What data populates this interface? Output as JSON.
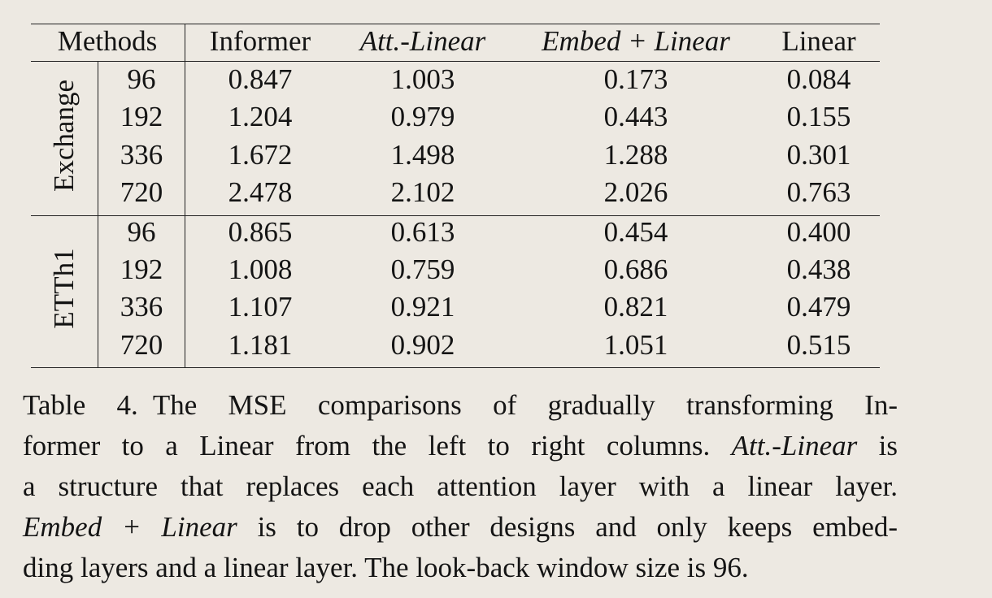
{
  "table": {
    "header": {
      "methods": "Methods",
      "informer": "Informer",
      "att_linear": "Att.-Linear",
      "embed_linear": "Embed + Linear",
      "linear": "Linear"
    },
    "groups": [
      {
        "name": "Exchange",
        "rows": [
          {
            "horizon": "96",
            "informer": "0.847",
            "att_linear": "1.003",
            "embed_linear": "0.173",
            "linear": "0.084"
          },
          {
            "horizon": "192",
            "informer": "1.204",
            "att_linear": "0.979",
            "embed_linear": "0.443",
            "linear": "0.155"
          },
          {
            "horizon": "336",
            "informer": "1.672",
            "att_linear": "1.498",
            "embed_linear": "1.288",
            "linear": "0.301"
          },
          {
            "horizon": "720",
            "informer": "2.478",
            "att_linear": "2.102",
            "embed_linear": "2.026",
            "linear": "0.763"
          }
        ]
      },
      {
        "name": "ETTh1",
        "rows": [
          {
            "horizon": "96",
            "informer": "0.865",
            "att_linear": "0.613",
            "embed_linear": "0.454",
            "linear": "0.400"
          },
          {
            "horizon": "192",
            "informer": "1.008",
            "att_linear": "0.759",
            "embed_linear": "0.686",
            "linear": "0.438"
          },
          {
            "horizon": "336",
            "informer": "1.107",
            "att_linear": "0.921",
            "embed_linear": "0.821",
            "linear": "0.479"
          },
          {
            "horizon": "720",
            "informer": "1.181",
            "att_linear": "0.902",
            "embed_linear": "1.051",
            "linear": "0.515"
          }
        ]
      }
    ]
  },
  "caption": {
    "label": "Table 4.",
    "line1": "The MSE comparisons of gradually transforming In-",
    "line2a": "former to a Linear from the left to right columns.",
    "line2b": "Att.-Linear",
    "line2c": "is",
    "line3": "a structure that replaces each attention layer with a linear layer.",
    "line4a": "Embed + Linear",
    "line4b": "is to drop other designs and only keeps embed-",
    "line5": "ding layers and a linear layer. The look-back window size is 96."
  }
}
